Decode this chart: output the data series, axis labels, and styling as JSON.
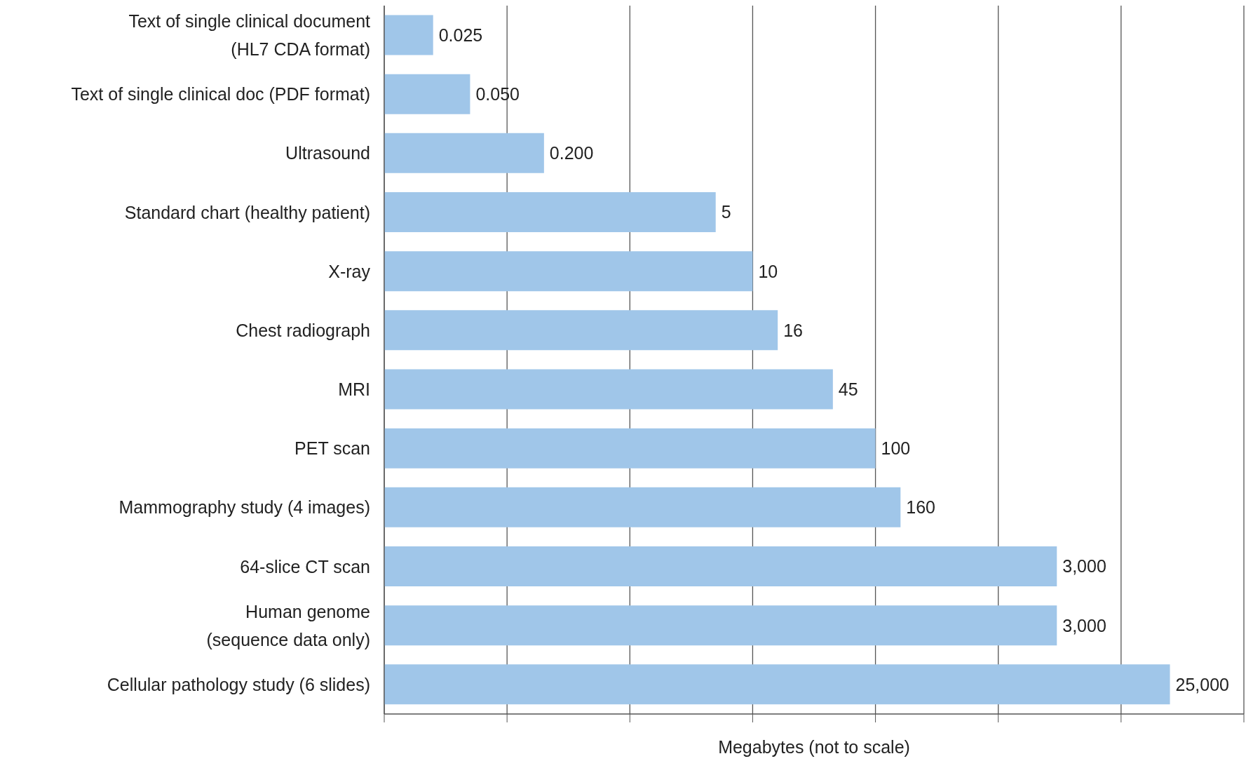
{
  "chart_data": {
    "type": "bar",
    "orientation": "horizontal",
    "xlabel": "Megabytes (not to scale)",
    "categories": [
      "Text of single clinical document\n(HL7 CDA format)",
      "Text of single clinical doc (PDF format)",
      "Ultrasound",
      "Standard chart (healthy patient)",
      "X-ray",
      "Chest radiograph",
      "MRI",
      "PET scan",
      "Mammography study (4 images)",
      "64-slice CT scan",
      "Human genome\n(sequence data only)",
      "Cellular pathology study (6 slides)"
    ],
    "values": [
      0.025,
      0.05,
      0.2,
      5,
      10,
      16,
      45,
      100,
      160,
      3000,
      3000,
      25000
    ],
    "value_labels": [
      "0.025",
      "0.050",
      "0.200",
      "5",
      "10",
      "16",
      "45",
      "100",
      "160",
      "3,000",
      "3,000",
      "25,000"
    ],
    "log": "x",
    "xlim": [
      0.01,
      100000
    ],
    "xticks": [
      {
        "value": 0.01,
        "label": null
      },
      {
        "value": 0.1,
        "label": null
      },
      {
        "value": 1,
        "label": null
      },
      {
        "value": 10,
        "label": null
      },
      {
        "value": 100,
        "label": null
      },
      {
        "value": 1000,
        "label": null
      },
      {
        "value": 10000,
        "label": null
      },
      {
        "value": 100000,
        "label": null
      }
    ],
    "color": "#a0c6e9",
    "grid": "x"
  }
}
